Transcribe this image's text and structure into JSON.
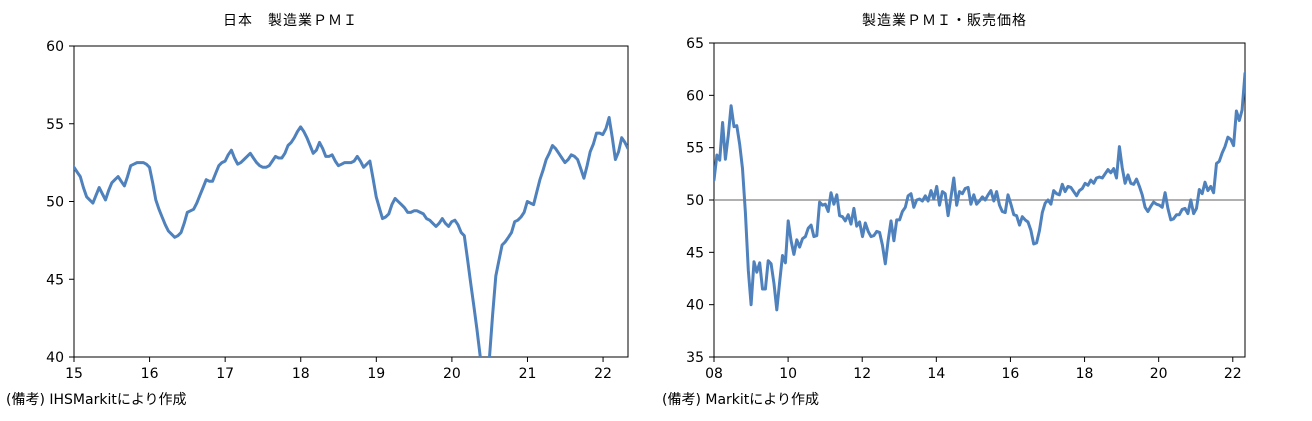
{
  "chart_data": [
    {
      "type": "line",
      "title": "日本　製造業ＰＭＩ",
      "note": "(備考) IHSMarkitにより作成",
      "xlim": [
        2015,
        2022.33
      ],
      "ylim": [
        40,
        60
      ],
      "x_ticks": [
        "15",
        "16",
        "17",
        "18",
        "19",
        "20",
        "21",
        "22"
      ],
      "y_ticks": [
        "40",
        "45",
        "50",
        "55",
        "60"
      ],
      "line_color": "#4F81BD",
      "series": [
        {
          "values": [
            52.2,
            51.9,
            51.6,
            50.9,
            50.3,
            50.1,
            49.9,
            50.4,
            50.9,
            50.5,
            50.1,
            50.7,
            51.2,
            51.4,
            51.6,
            51.3,
            51.0,
            51.6,
            52.3,
            52.4,
            52.5,
            52.5,
            52.5,
            52.4,
            52.2,
            51.2,
            50.1,
            49.5,
            49.0,
            48.5,
            48.1,
            47.9,
            47.7,
            47.8,
            48.0,
            48.6,
            49.3,
            49.4,
            49.5,
            49.9,
            50.4,
            50.9,
            51.4,
            51.3,
            51.3,
            51.8,
            52.3,
            52.5,
            52.6,
            53.0,
            53.3,
            52.8,
            52.4,
            52.5,
            52.7,
            52.9,
            53.1,
            52.8,
            52.5,
            52.3,
            52.2,
            52.2,
            52.3,
            52.6,
            52.9,
            52.8,
            52.8,
            53.1,
            53.6,
            53.8,
            54.1,
            54.5,
            54.8,
            54.5,
            54.1,
            53.6,
            53.1,
            53.3,
            53.8,
            53.4,
            52.9,
            52.9,
            53.0,
            52.6,
            52.3,
            52.4,
            52.5,
            52.5,
            52.5,
            52.6,
            52.9,
            52.6,
            52.2,
            52.4,
            52.6,
            51.5,
            50.3,
            49.6,
            48.9,
            49.0,
            49.2,
            49.8,
            50.2,
            50.0,
            49.8,
            49.6,
            49.3,
            49.3,
            49.4,
            49.4,
            49.3,
            49.2,
            48.9,
            48.8,
            48.6,
            48.4,
            48.6,
            48.9,
            48.6,
            48.4,
            48.7,
            48.8,
            48.5,
            48.0,
            47.8,
            46.3,
            44.8,
            43.3,
            41.8,
            40.1,
            38.4,
            37.8,
            40.0,
            42.7,
            45.2,
            46.2,
            47.2,
            47.4,
            47.7,
            48.0,
            48.7,
            48.8,
            49.0,
            49.3,
            50.0,
            49.9,
            49.8,
            50.6,
            51.4,
            52.0,
            52.7,
            53.1,
            53.6,
            53.4,
            53.1,
            52.8,
            52.5,
            52.7,
            53.0,
            52.9,
            52.7,
            52.1,
            51.5,
            52.3,
            53.2,
            53.7,
            54.4,
            54.4,
            54.3,
            54.7,
            55.4,
            54.1,
            52.7,
            53.2,
            54.1,
            53.8,
            53.4
          ]
        }
      ]
    },
    {
      "type": "line",
      "title": "製造業ＰＭＩ・販売価格",
      "note": "(備考) Markitにより作成",
      "xlim": [
        2008,
        2022.33
      ],
      "ylim": [
        35,
        65
      ],
      "x_ticks": [
        "08",
        "10",
        "12",
        "14",
        "16",
        "18",
        "20",
        "22"
      ],
      "y_ticks": [
        "35",
        "40",
        "45",
        "50",
        "55",
        "60",
        "65"
      ],
      "reference_line": 50,
      "line_color": "#4F81BD",
      "series": [
        {
          "values": [
            51.9,
            54.3,
            53.8,
            57.4,
            53.9,
            56.2,
            59.0,
            57.0,
            57.1,
            55.3,
            53.0,
            48.8,
            43.3,
            40.0,
            44.1,
            43.1,
            44.0,
            41.5,
            41.5,
            44.2,
            43.9,
            42.0,
            39.5,
            42.2,
            44.7,
            44.0,
            48.0,
            46.1,
            44.8,
            46.2,
            45.5,
            46.3,
            46.5,
            47.3,
            47.6,
            46.5,
            46.6,
            49.8,
            49.5,
            49.6,
            48.9,
            50.7,
            49.6,
            50.5,
            48.5,
            48.4,
            48.0,
            48.6,
            47.7,
            49.2,
            47.5,
            47.9,
            46.5,
            47.8,
            47.0,
            46.5,
            46.6,
            47.0,
            46.9,
            45.7,
            43.9,
            46.1,
            48.0,
            46.1,
            48.1,
            48.1,
            48.9,
            49.3,
            50.4,
            50.6,
            49.3,
            50.0,
            50.1,
            49.9,
            50.4,
            49.9,
            50.9,
            50.1,
            51.3,
            49.5,
            50.8,
            50.6,
            48.5,
            50.3,
            52.1,
            49.5,
            50.8,
            50.6,
            51.1,
            51.2,
            49.6,
            50.5,
            49.6,
            49.9,
            50.3,
            50.0,
            50.5,
            50.9,
            49.9,
            50.8,
            49.5,
            48.9,
            48.8,
            50.5,
            49.6,
            48.6,
            48.5,
            47.6,
            48.4,
            48.1,
            47.9,
            47.1,
            45.8,
            45.9,
            47.1,
            48.8,
            49.7,
            50.0,
            49.6,
            50.9,
            50.6,
            50.5,
            51.5,
            50.8,
            51.3,
            51.2,
            50.8,
            50.4,
            50.9,
            51.1,
            51.6,
            51.4,
            51.9,
            51.6,
            52.1,
            52.2,
            52.1,
            52.5,
            52.9,
            52.6,
            53.0,
            52.1,
            55.1,
            53.1,
            51.6,
            52.4,
            51.6,
            51.5,
            52.0,
            51.3,
            50.5,
            49.3,
            48.9,
            49.4,
            49.8,
            49.6,
            49.5,
            49.3,
            50.7,
            49.2,
            48.1,
            48.2,
            48.6,
            48.6,
            49.1,
            49.2,
            48.7,
            50.0,
            48.7,
            49.2,
            51.0,
            50.6,
            51.7,
            50.9,
            51.3,
            50.7,
            53.5,
            53.7,
            54.5,
            55.1,
            56.0,
            55.8,
            55.2,
            58.5,
            57.6,
            58.6,
            62.1
          ]
        }
      ]
    }
  ]
}
